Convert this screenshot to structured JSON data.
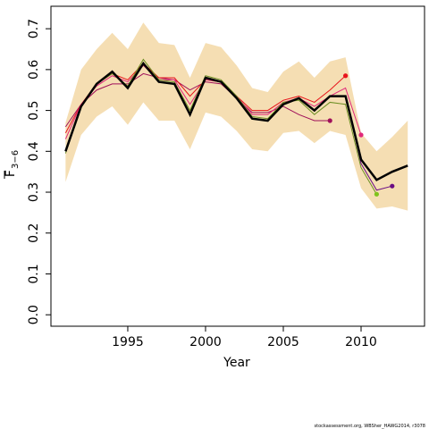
{
  "chart_data": {
    "type": "line",
    "xlabel": "Year",
    "ylabel": {
      "symbol": "F",
      "subscript": "3−6"
    },
    "footer": "stockassessment.org, WBSher_HAWG2014, r3078",
    "x": [
      1991,
      1992,
      1993,
      1994,
      1995,
      1996,
      1997,
      1998,
      1999,
      2000,
      2001,
      2002,
      2003,
      2004,
      2005,
      2006,
      2007,
      2008,
      2009,
      2010,
      2011,
      2012,
      2013
    ],
    "band": {
      "color": "#f5deb3",
      "upper": [
        0.47,
        0.6,
        0.65,
        0.69,
        0.65,
        0.715,
        0.665,
        0.66,
        0.58,
        0.665,
        0.655,
        0.61,
        0.555,
        0.545,
        0.595,
        0.62,
        0.58,
        0.62,
        0.63,
        0.445,
        0.4,
        0.435,
        0.475
      ],
      "lower": [
        0.325,
        0.44,
        0.485,
        0.51,
        0.465,
        0.52,
        0.475,
        0.475,
        0.405,
        0.495,
        0.485,
        0.45,
        0.405,
        0.4,
        0.445,
        0.45,
        0.42,
        0.45,
        0.44,
        0.31,
        0.26,
        0.265,
        0.255
      ]
    },
    "series": [
      {
        "color": "#000000",
        "end_marker": false,
        "values": [
          0.4,
          0.51,
          0.565,
          0.595,
          0.555,
          0.615,
          0.57,
          0.565,
          0.49,
          0.58,
          0.57,
          0.53,
          0.48,
          0.475,
          0.515,
          0.53,
          0.5,
          0.535,
          0.535,
          0.38,
          0.33,
          0.35,
          0.365
        ]
      },
      {
        "color": "#6a0d83",
        "end_marker": true,
        "values": [
          0.4,
          0.51,
          0.565,
          0.595,
          0.555,
          0.615,
          0.57,
          0.565,
          0.49,
          0.58,
          0.57,
          0.53,
          0.48,
          0.475,
          0.515,
          0.53,
          0.5,
          0.535,
          0.535,
          0.37,
          0.305,
          0.315,
          null
        ]
      },
      {
        "color": "#7fc31c",
        "end_marker": true,
        "values": [
          0.395,
          0.51,
          0.565,
          0.59,
          0.56,
          0.625,
          0.575,
          0.57,
          0.5,
          0.585,
          0.575,
          0.535,
          0.485,
          0.48,
          0.52,
          0.525,
          0.49,
          0.52,
          0.515,
          0.36,
          0.295,
          null,
          null
        ]
      },
      {
        "color": "#e0287a",
        "end_marker": true,
        "values": [
          0.43,
          0.515,
          0.56,
          0.585,
          0.57,
          0.61,
          0.575,
          0.575,
          0.515,
          0.575,
          0.57,
          0.535,
          0.49,
          0.49,
          0.52,
          0.53,
          0.51,
          0.535,
          0.555,
          0.44,
          null,
          null,
          null
        ]
      },
      {
        "color": "#e8141c",
        "end_marker": true,
        "values": [
          0.445,
          0.515,
          0.565,
          0.59,
          0.575,
          0.615,
          0.58,
          0.58,
          0.535,
          0.575,
          0.57,
          0.535,
          0.5,
          0.5,
          0.525,
          0.535,
          0.52,
          0.55,
          0.585,
          null,
          null,
          null,
          null
        ]
      },
      {
        "color": "#a0105a",
        "end_marker": true,
        "values": [
          0.46,
          0.515,
          0.55,
          0.565,
          0.565,
          0.59,
          0.58,
          0.575,
          0.55,
          0.57,
          0.565,
          0.53,
          0.495,
          0.495,
          0.51,
          0.49,
          0.475,
          0.475,
          null,
          null,
          null,
          null,
          null
        ]
      }
    ],
    "xlim": [
      1990.06,
      2014.08
    ],
    "ylim": [
      -0.028,
      0.755
    ],
    "xticks": [
      1995,
      2000,
      2005,
      2010
    ],
    "yticks": [
      {
        "value": 0,
        "label": "0.0"
      },
      0.1,
      0.2,
      0.3,
      0.4,
      0.5,
      0.6,
      0.7
    ]
  }
}
